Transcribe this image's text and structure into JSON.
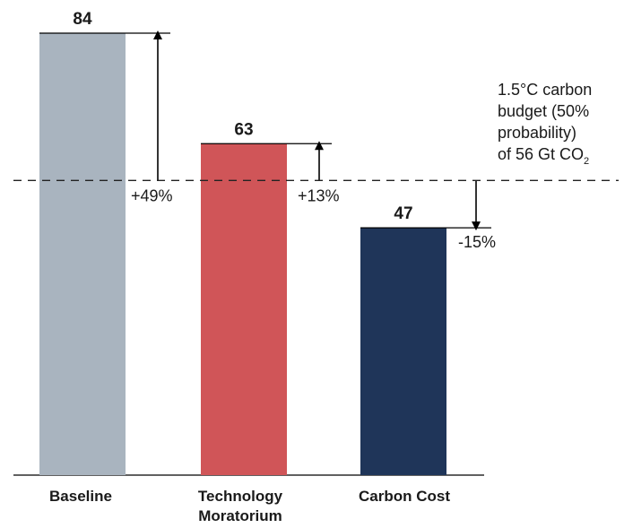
{
  "chart_data": {
    "type": "bar",
    "categories": [
      "Baseline",
      "Technology Moratorium",
      "Carbon Cost"
    ],
    "category_lines": [
      [
        "Baseline"
      ],
      [
        "Technology",
        "Moratorium"
      ],
      [
        "Carbon Cost"
      ]
    ],
    "values": [
      84,
      63,
      47
    ],
    "value_labels": [
      "84",
      "63",
      "47"
    ],
    "colors": [
      "#a9b4bf",
      "#d05558",
      "#1f3559"
    ],
    "reference_line": {
      "value": 56,
      "label_lines": [
        "1.5°C carbon",
        "budget (50%",
        "probability)",
        "of 56 Gt CO"
      ],
      "label_subscript": "2",
      "style": "dashed"
    },
    "differences": [
      "+49%",
      "+13%",
      "-15%"
    ],
    "ylim": [
      0,
      90
    ],
    "title": "",
    "xlabel": "",
    "ylabel": ""
  }
}
